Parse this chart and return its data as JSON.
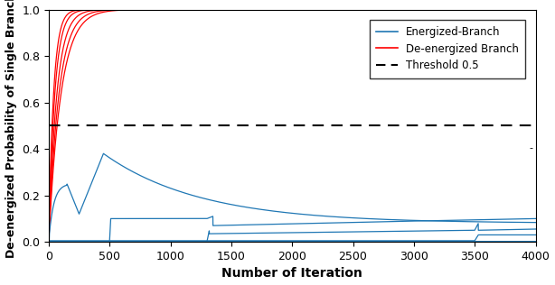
{
  "title": "",
  "xlabel": "Number of Iteration",
  "ylabel": "De-energized Probability of Single Branch",
  "xlim": [
    0,
    4000
  ],
  "ylim": [
    0,
    1.0
  ],
  "threshold": 0.5,
  "yticks": [
    0.0,
    0.2,
    0.4,
    0.6,
    0.8,
    1.0
  ],
  "xticks": [
    0,
    500,
    1000,
    1500,
    2000,
    2500,
    3000,
    3500,
    4000
  ],
  "red_color": "#ff0000",
  "blue_color": "#1f77b4",
  "threshold_color": "#000000",
  "legend_energized": "Energized-Branch",
  "legend_deenergized": "De-energized Branch",
  "legend_threshold": "Threshold 0.5",
  "figsize": [
    6.14,
    3.16
  ],
  "dpi": 100
}
